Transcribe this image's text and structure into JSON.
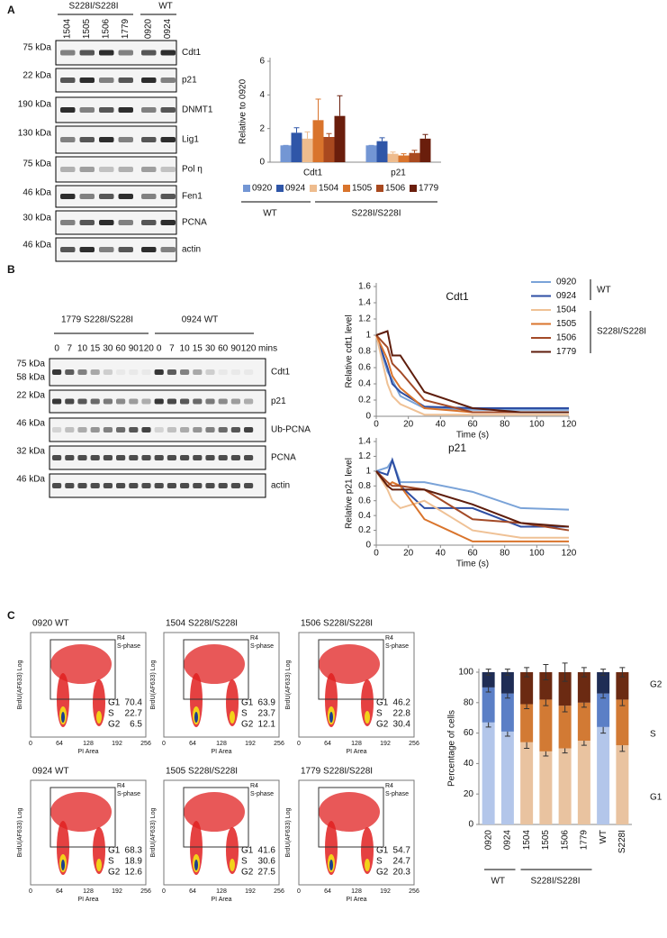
{
  "panels": [
    "A",
    "B",
    "C"
  ],
  "blot_a": {
    "groups": [
      "S228I/S228I",
      "WT"
    ],
    "lanes": [
      "1504",
      "1505",
      "1506",
      "1779",
      "0920",
      "0924"
    ],
    "rows": [
      {
        "marker": "75 kDa",
        "protein": "Cdt1"
      },
      {
        "marker": "22 kDa",
        "protein": "p21"
      },
      {
        "marker": "190 kDa",
        "protein": "DNMT1"
      },
      {
        "marker": "130 kDa",
        "protein": "Lig1"
      },
      {
        "marker": "75 kDa",
        "protein": "Pol η"
      },
      {
        "marker": "46 kDa",
        "protein": "Fen1"
      },
      {
        "marker": "30 kDa",
        "protein": "PCNA"
      },
      {
        "marker": "46 kDa",
        "protein": "actin"
      }
    ]
  },
  "blot_b": {
    "groups": [
      "1779 S228I/S228I",
      "0924 WT"
    ],
    "times": [
      "0",
      "7",
      "10",
      "15",
      "30",
      "60",
      "90",
      "120",
      "0",
      "7",
      "10",
      "15",
      "30",
      "60",
      "90",
      "120"
    ],
    "unit": "mins",
    "rows": [
      {
        "markers": [
          "75 kDa",
          "58 kDa"
        ],
        "protein": "Cdt1"
      },
      {
        "markers": [
          "22 kDa"
        ],
        "protein": "p21"
      },
      {
        "markers": [
          "46 kDa"
        ],
        "protein": "Ub-PCNA"
      },
      {
        "markers": [
          "32 kDa"
        ],
        "protein": "PCNA"
      },
      {
        "markers": [
          "46 kDa"
        ],
        "protein": "actin"
      }
    ]
  },
  "flow": {
    "y_label": "BrdU(AF633) Log",
    "x_label": "PI Area",
    "x_ticks": [
      "0",
      "64",
      "128",
      "192",
      "256"
    ],
    "gate": "R4",
    "gate_label": "S-phase",
    "phase_labels": [
      "G1",
      "S",
      "G2"
    ],
    "plots": [
      {
        "title": "0920 WT",
        "values": [
          70.4,
          22.7,
          6.5
        ]
      },
      {
        "title": "1504 S228I/S228I",
        "values": [
          63.9,
          23.7,
          12.1
        ]
      },
      {
        "title": "1506 S228I/S228I",
        "values": [
          46.2,
          22.8,
          30.4
        ]
      },
      {
        "title": "0924 WT",
        "values": [
          68.3,
          18.9,
          12.6
        ]
      },
      {
        "title": "1505 S228I/S228I",
        "values": [
          41.6,
          30.6,
          27.5
        ]
      },
      {
        "title": "1779 S228I/S228I",
        "values": [
          54.7,
          24.7,
          20.3
        ]
      }
    ]
  },
  "chart_data": [
    {
      "type": "bar",
      "ylabel": "Relative to 0920",
      "categories": [
        "Cdt1",
        "p21"
      ],
      "ylim": [
        0,
        6
      ],
      "yticks": [
        0,
        2,
        4,
        6
      ],
      "legend_groups": [
        "WT",
        "S228I/S228I"
      ],
      "series": [
        {
          "name": "0920",
          "color": "#7396d4",
          "values": [
            1,
            1
          ],
          "errors": [
            0,
            0
          ]
        },
        {
          "name": "0924",
          "color": "#2f56a8",
          "values": [
            1.75,
            1.25
          ],
          "errors": [
            0.3,
            0.2
          ]
        },
        {
          "name": "1504",
          "color": "#eebc8e",
          "values": [
            1.4,
            0.5
          ],
          "errors": [
            0.4,
            0.1
          ]
        },
        {
          "name": "1505",
          "color": "#d9742c",
          "values": [
            2.5,
            0.4
          ],
          "errors": [
            1.25,
            0.1
          ]
        },
        {
          "name": "1506",
          "color": "#a9491f",
          "values": [
            1.5,
            0.55
          ],
          "errors": [
            0.2,
            0.15
          ]
        },
        {
          "name": "1779",
          "color": "#6a1e0c",
          "values": [
            2.75,
            1.4
          ],
          "errors": [
            1.2,
            0.25
          ]
        }
      ]
    },
    {
      "type": "line",
      "title": "Cdt1",
      "xlabel": "Time (s)",
      "ylabel": "Relative cdt1 level",
      "x": [
        0,
        7,
        10,
        15,
        30,
        60,
        90,
        120
      ],
      "xlim": [
        0,
        120
      ],
      "xticks": [
        0,
        20,
        40,
        60,
        80,
        100,
        120
      ],
      "ylim": [
        0,
        1.6
      ],
      "yticks": [
        0,
        0.2,
        0.4,
        0.6,
        0.8,
        1,
        1.2,
        1.4,
        1.6
      ],
      "legend": true,
      "legend_groups": [
        "WT",
        "S228I/S228I"
      ],
      "series": [
        {
          "name": "0920",
          "color": "#7aa3d8",
          "values": [
            1,
            0.55,
            0.45,
            0.25,
            0.1,
            0.08,
            0.08,
            0.08
          ]
        },
        {
          "name": "0924",
          "color": "#2d4ea3",
          "values": [
            1,
            0.6,
            0.4,
            0.3,
            0.12,
            0.1,
            0.1,
            0.1
          ]
        },
        {
          "name": "1504",
          "color": "#efc195",
          "values": [
            1,
            0.4,
            0.25,
            0.15,
            0.02,
            0.02,
            0.02,
            0.02
          ]
        },
        {
          "name": "1505",
          "color": "#d9742c",
          "values": [
            1,
            0.7,
            0.5,
            0.35,
            0.1,
            0.05,
            0.05,
            0.05
          ]
        },
        {
          "name": "1506",
          "color": "#a34a27",
          "values": [
            1,
            0.85,
            0.65,
            0.55,
            0.2,
            0.05,
            0.05,
            0.05
          ]
        },
        {
          "name": "1779",
          "color": "#5e1d0c",
          "values": [
            1,
            1.05,
            0.75,
            0.75,
            0.3,
            0.1,
            0.05,
            0.05
          ]
        }
      ]
    },
    {
      "type": "line",
      "title": "p21",
      "xlabel": "Time (s)",
      "ylabel": "Relative p21 level",
      "x": [
        0,
        7,
        10,
        15,
        30,
        60,
        90,
        120
      ],
      "xlim": [
        0,
        120
      ],
      "xticks": [
        0,
        20,
        40,
        60,
        80,
        100,
        120
      ],
      "ylim": [
        0,
        1.4
      ],
      "yticks": [
        0,
        0.2,
        0.4,
        0.6,
        0.8,
        1,
        1.2,
        1.4
      ],
      "legend": false,
      "series": [
        {
          "name": "0920",
          "color": "#7aa3d8",
          "values": [
            1,
            1.05,
            1.15,
            0.85,
            0.85,
            0.72,
            0.5,
            0.48
          ]
        },
        {
          "name": "0924",
          "color": "#2d4ea3",
          "values": [
            1,
            0.95,
            1.15,
            0.8,
            0.5,
            0.5,
            0.25,
            0.25
          ]
        },
        {
          "name": "1504",
          "color": "#efc195",
          "values": [
            1,
            0.75,
            0.6,
            0.5,
            0.6,
            0.2,
            0.1,
            0.1
          ]
        },
        {
          "name": "1505",
          "color": "#d9742c",
          "values": [
            1,
            0.8,
            0.85,
            0.8,
            0.35,
            0.05,
            0.05,
            0.05
          ]
        },
        {
          "name": "1506",
          "color": "#a34a27",
          "values": [
            1,
            0.85,
            0.8,
            0.8,
            0.75,
            0.35,
            0.3,
            0.2
          ]
        },
        {
          "name": "1779",
          "color": "#5e1d0c",
          "values": [
            1,
            0.8,
            0.75,
            0.75,
            0.75,
            0.55,
            0.3,
            0.25
          ]
        }
      ]
    },
    {
      "type": "stacked_bar",
      "ylabel": "Percentage of cells",
      "categories": [
        "0920",
        "0924",
        "1504",
        "1505",
        "1506",
        "1779",
        "WT",
        "S228I"
      ],
      "ylim": [
        0,
        100
      ],
      "yticks": [
        0,
        20,
        40,
        60,
        80,
        100
      ],
      "groups": [
        "WT",
        "S228I/S228I"
      ],
      "series": [
        {
          "name": "G1",
          "colors": [
            "#b3c6ea",
            "#b3c6ea",
            "#e9c3a0",
            "#e9c3a0",
            "#e9c3a0",
            "#e9c3a0",
            "#b3c6ea",
            "#e9c3a0"
          ],
          "values": [
            67,
            61,
            54,
            48,
            50,
            55,
            64,
            52
          ],
          "errors": [
            3,
            3,
            4,
            3,
            3,
            3,
            4,
            4
          ]
        },
        {
          "name": "S",
          "colors": [
            "#5b7fc6",
            "#5b7fc6",
            "#d27a34",
            "#d27a34",
            "#d27a34",
            "#d27a34",
            "#5b7fc6",
            "#d27a34"
          ],
          "values": [
            23,
            25,
            25,
            34,
            28,
            25,
            22,
            30
          ],
          "errors": [
            3,
            3,
            3,
            4,
            4,
            3,
            3,
            4
          ]
        },
        {
          "name": "G2",
          "colors": [
            "#1f2d55",
            "#1f2d55",
            "#6b2a12",
            "#6b2a12",
            "#6b2a12",
            "#6b2a12",
            "#1f2d55",
            "#6b2a12"
          ],
          "values": [
            10,
            14,
            21,
            18,
            22,
            20,
            14,
            18
          ],
          "errors": [
            2,
            2,
            3,
            5,
            6,
            3,
            2,
            3
          ]
        }
      ]
    }
  ]
}
